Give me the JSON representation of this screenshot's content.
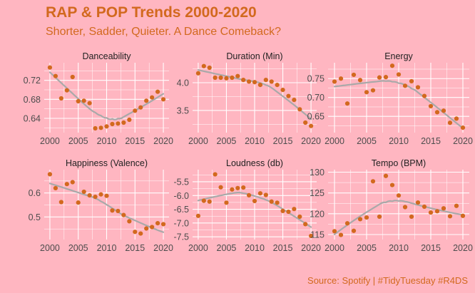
{
  "title": "RAP & POP Trends 2000-2020",
  "subtitle": "Shorter, Sadder, Quieter. A Dance Comeback?",
  "caption": "Source: Spotify | #TidyTuesday #R4DS",
  "colors": {
    "background": "#ffb6c1",
    "title": "#d2691e",
    "point": "#d2691e",
    "smooth": "#a9a9a9",
    "grid": "#ffffff"
  },
  "chart_data": [
    {
      "type": "scatter",
      "title": "Danceability",
      "x": [
        2000,
        2001,
        2002,
        2003,
        2004,
        2005,
        2006,
        2007,
        2008,
        2009,
        2010,
        2011,
        2012,
        2013,
        2014,
        2015,
        2016,
        2017,
        2018,
        2019,
        2020
      ],
      "values": [
        0.747,
        0.729,
        0.682,
        0.699,
        0.727,
        0.676,
        0.677,
        0.672,
        0.619,
        0.62,
        0.623,
        0.628,
        0.629,
        0.631,
        0.637,
        0.656,
        0.663,
        0.677,
        0.684,
        0.696,
        0.68
      ],
      "smooth": true,
      "xlim": [
        1999,
        2021
      ],
      "ylim": [
        0.61,
        0.757
      ],
      "xticks": [
        2000,
        2005,
        2010,
        2015,
        2020
      ],
      "xtick_labels": [
        "2000",
        "2005",
        "2010",
        "2015",
        "2020"
      ],
      "yticks": [
        0.64,
        0.68,
        0.72
      ],
      "ytick_labels": [
        "0.64",
        "0.68",
        "0.72"
      ]
    },
    {
      "type": "scatter",
      "title": "Duration (Min)",
      "x": [
        2000,
        2001,
        2002,
        2003,
        2004,
        2005,
        2006,
        2007,
        2008,
        2009,
        2010,
        2011,
        2012,
        2013,
        2014,
        2015,
        2016,
        2017,
        2018,
        2019,
        2020
      ],
      "values": [
        4.17,
        4.3,
        4.27,
        4.09,
        4.09,
        4.08,
        4.09,
        4.12,
        4.05,
        4.02,
        4.01,
        3.96,
        4.05,
        4.02,
        3.96,
        3.87,
        3.76,
        3.69,
        3.52,
        3.28,
        3.22
      ],
      "smooth": true,
      "xlim": [
        1999,
        2021
      ],
      "ylim": [
        3.1,
        4.36
      ],
      "xticks": [
        2000,
        2005,
        2010,
        2015,
        2020
      ],
      "xtick_labels": [
        "2000",
        "2005",
        "2010",
        "2015",
        "2020"
      ],
      "yticks": [
        3.5,
        4.0
      ],
      "ytick_labels": [
        "3.5",
        "4.0"
      ]
    },
    {
      "type": "scatter",
      "title": "Energy",
      "x": [
        2000,
        2001,
        2002,
        2003,
        2004,
        2005,
        2006,
        2007,
        2008,
        2009,
        2010,
        2011,
        2012,
        2013,
        2014,
        2015,
        2016,
        2017,
        2018,
        2019,
        2020
      ],
      "values": [
        0.742,
        0.75,
        0.684,
        0.76,
        0.746,
        0.714,
        0.719,
        0.753,
        0.754,
        0.784,
        0.761,
        0.731,
        0.743,
        0.727,
        0.704,
        0.677,
        0.661,
        0.665,
        0.633,
        0.644,
        0.62
      ],
      "smooth": true,
      "xlim": [
        1999,
        2021
      ],
      "ylim": [
        0.607,
        0.792
      ],
      "xticks": [
        2000,
        2005,
        2010,
        2015,
        2020
      ],
      "xtick_labels": [
        "2000",
        "2005",
        "2010",
        "2015",
        "2020"
      ],
      "yticks": [
        0.65,
        0.7,
        0.75
      ],
      "ytick_labels": [
        "0.65",
        "0.70",
        "0.75"
      ]
    },
    {
      "type": "scatter",
      "title": "Happiness (Valence)",
      "x": [
        2000,
        2001,
        2002,
        2003,
        2004,
        2005,
        2006,
        2007,
        2008,
        2009,
        2010,
        2011,
        2012,
        2013,
        2014,
        2015,
        2016,
        2017,
        2018,
        2019,
        2020
      ],
      "values": [
        0.678,
        0.62,
        0.562,
        0.637,
        0.645,
        0.56,
        0.605,
        0.59,
        0.584,
        0.594,
        0.588,
        0.527,
        0.525,
        0.508,
        0.482,
        0.438,
        0.431,
        0.452,
        0.458,
        0.474,
        0.47
      ],
      "smooth": true,
      "xlim": [
        1999,
        2021
      ],
      "ylim": [
        0.406,
        0.697
      ],
      "xticks": [
        2000,
        2005,
        2010,
        2015,
        2020
      ],
      "xtick_labels": [
        "2000",
        "2005",
        "2010",
        "2015",
        "2020"
      ],
      "yticks": [
        0.5,
        0.6
      ],
      "ytick_labels": [
        "0.5",
        "0.6"
      ]
    },
    {
      "type": "scatter",
      "title": "Loudness (db)",
      "x": [
        2000,
        2001,
        2002,
        2003,
        2004,
        2005,
        2006,
        2007,
        2008,
        2009,
        2010,
        2011,
        2012,
        2013,
        2014,
        2015,
        2016,
        2017,
        2018,
        2019,
        2020
      ],
      "values": [
        -6.74,
        -6.19,
        -6.22,
        -5.23,
        -5.7,
        -6.26,
        -5.78,
        -5.73,
        -5.71,
        -5.99,
        -6.2,
        -5.92,
        -5.98,
        -6.22,
        -6.26,
        -6.56,
        -6.59,
        -6.49,
        -6.77,
        -7.04,
        -7.47
      ],
      "smooth": true,
      "xlim": [
        1999,
        2021
      ],
      "ylim": [
        -7.6,
        -5.06
      ],
      "xticks": [
        2000,
        2005,
        2010,
        2015,
        2020
      ],
      "xtick_labels": [
        "2000",
        "2005",
        "2010",
        "2015",
        "2020"
      ],
      "yticks": [
        -7.5,
        -7.0,
        -6.5,
        -6.0,
        -5.5
      ],
      "ytick_labels": [
        "-7.5",
        "-7.0",
        "-6.5",
        "-6.0",
        "-5.5"
      ]
    },
    {
      "type": "scatter",
      "title": "Tempo (BPM)",
      "x": [
        2000,
        2001,
        2002,
        2003,
        2004,
        2005,
        2006,
        2007,
        2008,
        2009,
        2010,
        2011,
        2012,
        2013,
        2014,
        2015,
        2016,
        2017,
        2018,
        2019,
        2020
      ],
      "values": [
        115.8,
        114.9,
        117.7,
        115.9,
        118.7,
        119.1,
        127.8,
        119.3,
        129.1,
        126.9,
        124.4,
        121.6,
        119.3,
        122.7,
        121.7,
        120.3,
        120.6,
        121.3,
        119.4,
        121.9,
        119.5
      ],
      "smooth": true,
      "xlim": [
        1999,
        2021
      ],
      "ylim": [
        113.8,
        130.6
      ],
      "xticks": [
        2000,
        2005,
        2010,
        2015,
        2020
      ],
      "xtick_labels": [
        "2000",
        "2005",
        "2010",
        "2015",
        "2020"
      ],
      "yticks": [
        115,
        120,
        125,
        130
      ],
      "ytick_labels": [
        "115",
        "120",
        "125",
        "130"
      ]
    }
  ]
}
